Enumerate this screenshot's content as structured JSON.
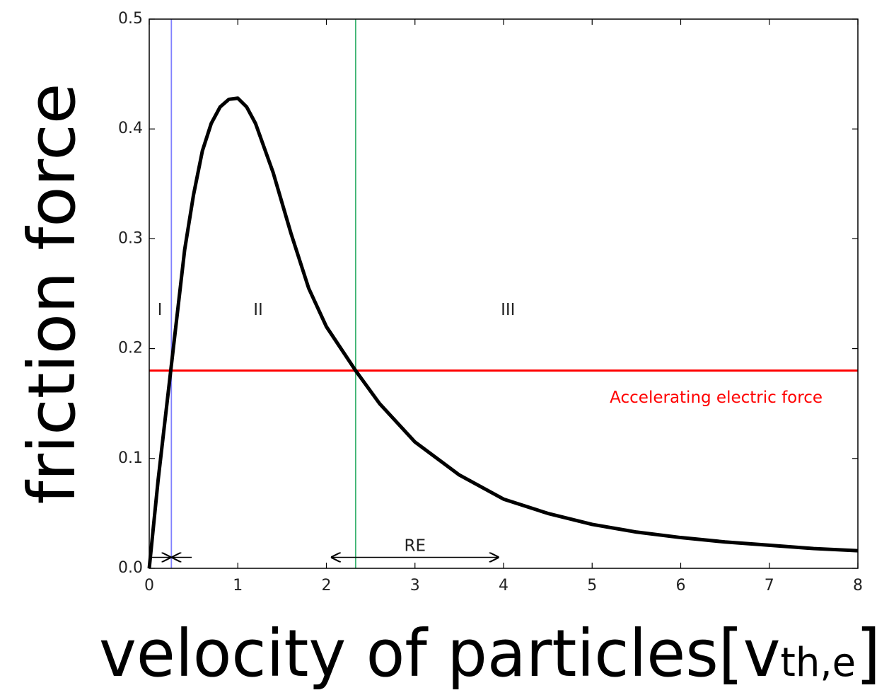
{
  "chart_data": {
    "type": "line",
    "ylabel": "friction force",
    "xlabel": "velocity of particles[v",
    "xlabel_sub": "th,e",
    "xlabel_end": "]",
    "xlim": [
      0,
      8
    ],
    "ylim": [
      0,
      0.5
    ],
    "xticks": [
      0,
      1,
      2,
      3,
      4,
      5,
      6,
      7,
      8
    ],
    "yticks": [
      {
        "value": 0,
        "label": "0.0"
      },
      0.1,
      0.2,
      0.3,
      0.4,
      0.5
    ],
    "series": [
      {
        "color": "#000000",
        "x": [
          0,
          0.1,
          0.2,
          0.3,
          0.4,
          0.5,
          0.6,
          0.7,
          0.8,
          0.9,
          1.0,
          1.1,
          1.2,
          1.4,
          1.6,
          1.8,
          2.0,
          2.33,
          2.6,
          3.0,
          3.5,
          4.0,
          4.5,
          5.0,
          5.5,
          6.0,
          6.5,
          7.0,
          7.5,
          8.0
        ],
        "values": [
          0.0,
          0.08,
          0.15,
          0.22,
          0.29,
          0.34,
          0.38,
          0.405,
          0.42,
          0.427,
          0.428,
          0.42,
          0.405,
          0.36,
          0.305,
          0.255,
          0.22,
          0.18,
          0.15,
          0.115,
          0.085,
          0.063,
          0.05,
          0.04,
          0.033,
          0.028,
          0.024,
          0.021,
          0.018,
          0.016
        ]
      }
    ],
    "hlines": [
      {
        "y": 0.18,
        "color": "#ff0000"
      }
    ],
    "vlines": [
      {
        "x": 0.25,
        "color": "#8080ff"
      },
      {
        "x": 2.33,
        "color": "#3cb371"
      }
    ],
    "annotations": [
      {
        "text": "I",
        "x": 0.12,
        "y": 0.235
      },
      {
        "text": "II",
        "x": 1.23,
        "y": 0.235
      },
      {
        "text": "III",
        "x": 4.05,
        "y": 0.235
      },
      {
        "text": "RE",
        "x": 3.0,
        "y": 0.02
      },
      {
        "text": "Accelerating electric force",
        "x": 6.4,
        "y": 0.155,
        "color": "#ff0000"
      }
    ],
    "arrows": [
      {
        "from": [
          0,
          0.01
        ],
        "to": [
          0.25,
          0.01
        ]
      },
      {
        "from": [
          0.48,
          0.01
        ],
        "to": [
          0.25,
          0.01
        ]
      },
      {
        "from": [
          2.33,
          0.01
        ],
        "to": [
          2.05,
          0.01
        ]
      },
      {
        "from": [
          2.33,
          0.01
        ],
        "to": [
          3.95,
          0.01
        ]
      }
    ]
  }
}
